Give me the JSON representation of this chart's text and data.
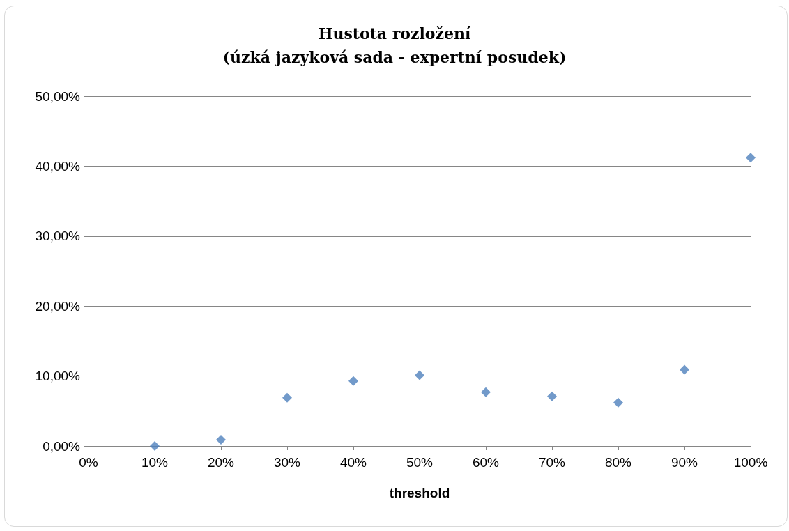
{
  "chart_data": {
    "type": "scatter",
    "title": "Hustota rozložení\n(úzká jazyková sada - expertní posudek)",
    "xlabel": "threshold",
    "x": [
      10,
      20,
      30,
      40,
      50,
      60,
      70,
      80,
      90,
      100
    ],
    "series": [
      {
        "color": "#4f81bd",
        "values": [
          0.0,
          0.9,
          6.9,
          9.3,
          10.1,
          7.7,
          7.1,
          6.2,
          10.9,
          41.2
        ]
      }
    ],
    "xlim": [
      0,
      100
    ],
    "xticks": [
      {
        "value": 0,
        "label": "0%"
      },
      {
        "value": 10,
        "label": "10%"
      },
      {
        "value": 20,
        "label": "20%"
      },
      {
        "value": 30,
        "label": "30%"
      },
      {
        "value": 40,
        "label": "40%"
      },
      {
        "value": 50,
        "label": "50%"
      },
      {
        "value": 60,
        "label": "60%"
      },
      {
        "value": 70,
        "label": "70%"
      },
      {
        "value": 80,
        "label": "80%"
      },
      {
        "value": 90,
        "label": "90%"
      },
      {
        "value": 100,
        "label": "100%"
      }
    ],
    "ylim": [
      0,
      50
    ],
    "yticks": [
      {
        "value": 0,
        "label": "0,00%"
      },
      {
        "value": 10,
        "label": "10,00%"
      },
      {
        "value": 20,
        "label": "20,00%"
      },
      {
        "value": 30,
        "label": "30,00%"
      },
      {
        "value": 40,
        "label": "40,00%"
      },
      {
        "value": 50,
        "label": "50,00%"
      }
    ],
    "grid": "y",
    "marker": "diamond"
  }
}
